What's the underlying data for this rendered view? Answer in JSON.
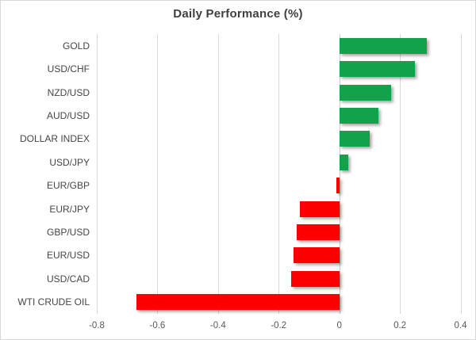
{
  "chart_data": {
    "type": "bar",
    "orientation": "horizontal",
    "title": "Daily Performance (%)",
    "categories": [
      "GOLD",
      "USD/CHF",
      "NZD/USD",
      "AUD/USD",
      "DOLLAR INDEX",
      "USD/JPY",
      "EUR/GBP",
      "EUR/JPY",
      "GBP/USD",
      "EUR/USD",
      "USD/CAD",
      "WTI CRUDE OIL"
    ],
    "values": [
      0.29,
      0.25,
      0.17,
      0.13,
      0.1,
      0.03,
      -0.01,
      -0.13,
      -0.14,
      -0.15,
      -0.16,
      -0.67
    ],
    "xlim": [
      -0.8,
      0.4
    ],
    "xticks": [
      -0.8,
      -0.6,
      -0.4,
      -0.2,
      0,
      0.2,
      0.4
    ],
    "xtick_labels": [
      "-0.8",
      "-0.6",
      "-0.4",
      "-0.2",
      "0",
      "0.2",
      "0.4"
    ],
    "grid": true,
    "legend": false,
    "colors": {
      "positive": "#12A24C",
      "negative": "#FC0000",
      "gridline": "#D9D9D9",
      "title_text": "#3F3F3F",
      "category_text": "#454545",
      "tick_text": "#595959"
    }
  }
}
